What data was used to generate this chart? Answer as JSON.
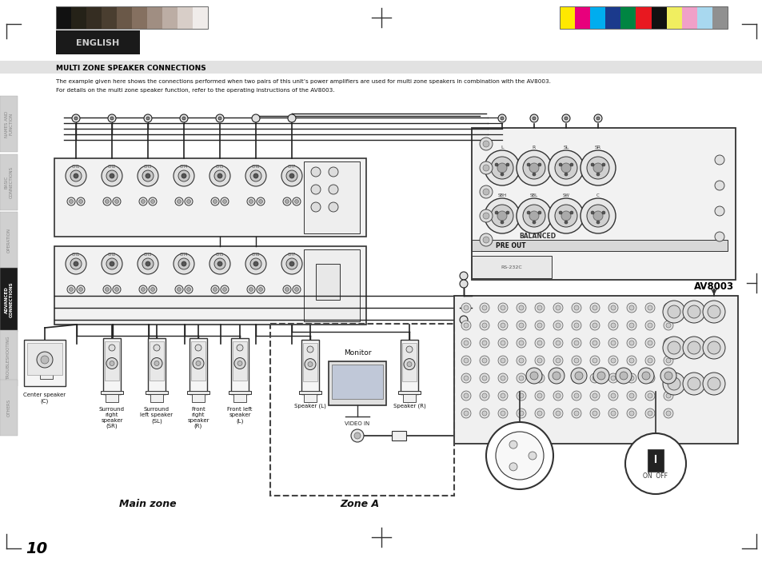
{
  "page_bg": "#ffffff",
  "page_width": 9.54,
  "page_height": 7.08,
  "dpi": 100,
  "grayscale_colors": [
    "#111111",
    "#252218",
    "#352d22",
    "#4a3e30",
    "#6a5848",
    "#857060",
    "#a08e82",
    "#bcada4",
    "#d8cec8",
    "#f0ecea"
  ],
  "color_strip_colors": [
    "#ffe800",
    "#e8007c",
    "#00adef",
    "#1b3a8c",
    "#008542",
    "#e81820",
    "#111111",
    "#f0ee60",
    "#f0a0c8",
    "#a8d8ef",
    "#909090"
  ],
  "english_text": "ENGLISH",
  "header_text": "MULTI ZONE SPEAKER CONNECTIONS",
  "body_line1": "The example given here shows the connections performed when two pairs of this unit’s power amplifiers are used for multi zone speakers in combination with the AV8003.",
  "body_line2": "For details on the multi zone speaker function, refer to the operating instructions of the AV8003.",
  "side_tab_labels": [
    "NAMES AND\nFUNCTION",
    "BASIC\nCONNECTIONS",
    "OPERATION",
    "ADVANCED\nCONNECTIONS",
    "TROUBLESHOOTING",
    "OTHERS"
  ],
  "side_tab_active": 3,
  "page_number": "10",
  "main_zone_text": "Main zone",
  "zone_a_text": "Zone A",
  "av8003_text": "AV8003",
  "monitor_text": "Monitor",
  "video_in_text": "VIDEO IN",
  "pre_out_text": "PRE OUT",
  "balanced_text": "BALANCED",
  "on_off_text": "ON  OFF",
  "wire_color": "#222222",
  "device_edge_color": "#333333",
  "device_fill": "#f5f5f5",
  "light_fill": "#e8e8e8"
}
